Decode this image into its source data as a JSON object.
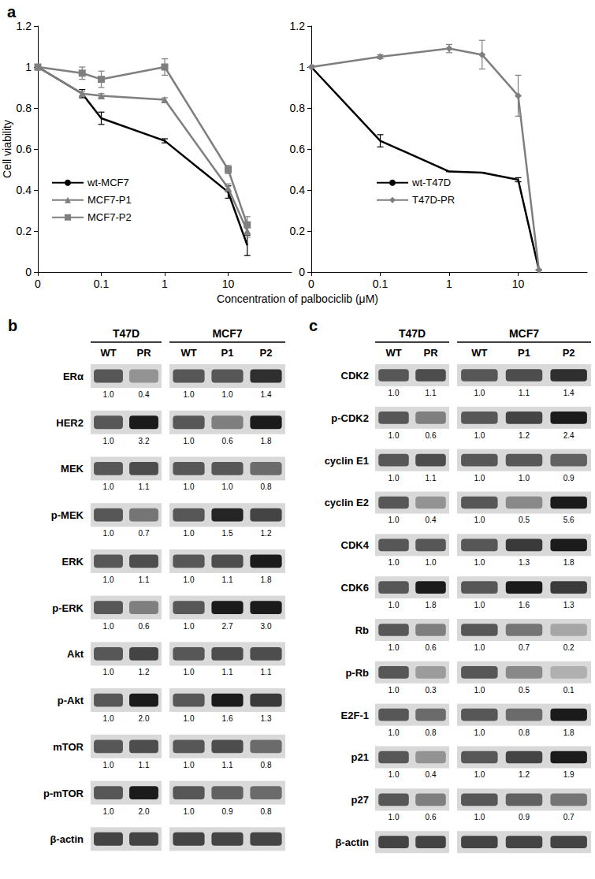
{
  "chart_data": [
    {
      "type": "line",
      "panel_label": "a",
      "ylabel": "Cell viability",
      "xlabel": "Concentration of palbociclib (μM)",
      "log": "x",
      "xlim": [
        0.01,
        100
      ],
      "xticks": [
        {
          "value": 0.01,
          "label": "0"
        },
        0.1,
        1,
        10
      ],
      "ylim": [
        0,
        1.2
      ],
      "yticks": [
        0,
        0.2,
        0.4,
        0.6,
        0.8,
        1,
        1.2
      ],
      "grid": false,
      "legend": "lower left",
      "x": [
        0.01,
        0.05,
        0.1,
        1,
        10,
        20
      ],
      "series": [
        {
          "name": "wt-MCF7",
          "color": "#000000",
          "marker": "none",
          "values": [
            1,
            0.87,
            0.75,
            0.64,
            0.39,
            0.13
          ],
          "errors": [
            0,
            0.02,
            0.03,
            0.01,
            0.03,
            0.05
          ]
        },
        {
          "name": "MCF7-P1",
          "color": "#7f7f7f",
          "marker": "triangle",
          "values": [
            1,
            0.87,
            0.86,
            0.84,
            0.41,
            0.2
          ],
          "errors": [
            0,
            0.01,
            0.01,
            0.01,
            0.02,
            0.03
          ]
        },
        {
          "name": "MCF7-P2",
          "color": "#7f7f7f",
          "marker": "square",
          "values": [
            1,
            0.97,
            0.94,
            1.0,
            0.5,
            0.23
          ],
          "errors": [
            0,
            0.03,
            0.04,
            0.04,
            0.02,
            0.04
          ]
        }
      ]
    },
    {
      "type": "line",
      "log": "x",
      "xlim": [
        0.01,
        100
      ],
      "xticks": [
        {
          "value": 0.01,
          "label": "0"
        },
        0.1,
        1,
        10
      ],
      "ylim": [
        0,
        1.2
      ],
      "yticks": [
        0,
        0.2,
        0.4,
        0.6,
        0.8,
        1,
        1.2
      ],
      "grid": false,
      "legend": "lower center",
      "x": [
        0.01,
        0.1,
        1,
        3,
        10,
        20
      ],
      "series": [
        {
          "name": "wt-T47D",
          "color": "#000000",
          "marker": "none",
          "values": [
            1,
            0.64,
            0.49,
            0.485,
            0.45,
            0.01
          ],
          "errors": [
            0,
            0.03,
            0,
            0,
            0.01,
            0
          ]
        },
        {
          "name": "T47D-PR",
          "color": "#7f7f7f",
          "marker": "diamond",
          "values": [
            1,
            1.05,
            1.09,
            1.06,
            0.86,
            0.01
          ],
          "errors": [
            0.01,
            0.01,
            0.02,
            0.07,
            0.1,
            0
          ]
        }
      ]
    }
  ],
  "blots": [
    {
      "panel_label": "b",
      "groups": [
        {
          "name": "T47D",
          "lanes": [
            "WT",
            "PR"
          ]
        },
        {
          "name": "MCF7",
          "lanes": [
            "WT",
            "P1",
            "P2"
          ]
        }
      ],
      "rows": [
        {
          "name": "ERα",
          "values": [
            "1.0",
            "0.4",
            "1.0",
            "1.0",
            "1.4"
          ]
        },
        {
          "name": "HER2",
          "values": [
            "1.0",
            "3.2",
            "1.0",
            "0.6",
            "1.8"
          ]
        },
        {
          "name": "MEK",
          "values": [
            "1.0",
            "1.1",
            "1.0",
            "1.0",
            "0.8"
          ]
        },
        {
          "name": "p-MEK",
          "values": [
            "1.0",
            "0.7",
            "1.0",
            "1.5",
            "1.2"
          ]
        },
        {
          "name": "ERK",
          "values": [
            "1.0",
            "1.1",
            "1.0",
            "1.1",
            "1.8"
          ]
        },
        {
          "name": "p-ERK",
          "values": [
            "1.0",
            "0.6",
            "1.0",
            "2.7",
            "3.0"
          ]
        },
        {
          "name": "Akt",
          "values": [
            "1.0",
            "1.2",
            "1.0",
            "1.1",
            "1.1"
          ]
        },
        {
          "name": "p-Akt",
          "values": [
            "1.0",
            "2.0",
            "1.0",
            "1.6",
            "1.3"
          ]
        },
        {
          "name": "mTOR",
          "values": [
            "1.0",
            "1.1",
            "1.0",
            "1.1",
            "0.8"
          ]
        },
        {
          "name": "p-mTOR",
          "values": [
            "1.0",
            "2.0",
            "1.0",
            "0.9",
            "0.8"
          ]
        },
        {
          "name": "β-actin"
        }
      ]
    },
    {
      "panel_label": "c",
      "groups": [
        {
          "name": "T47D",
          "lanes": [
            "WT",
            "PR"
          ]
        },
        {
          "name": "MCF7",
          "lanes": [
            "WT",
            "P1",
            "P2"
          ]
        }
      ],
      "rows": [
        {
          "name": "CDK2",
          "values": [
            "1.0",
            "1.1",
            "1.0",
            "1.1",
            "1.4"
          ]
        },
        {
          "name": "p-CDK2",
          "values": [
            "1.0",
            "0.6",
            "1.0",
            "1.2",
            "2.4"
          ]
        },
        {
          "name": "cyclin E1",
          "values": [
            "1.0",
            "1.1",
            "1.0",
            "1.0",
            "0.9"
          ]
        },
        {
          "name": "cyclin E2",
          "values": [
            "1.0",
            "0.4",
            "1.0",
            "0.5",
            "5.6"
          ]
        },
        {
          "name": "CDK4",
          "values": [
            "1.0",
            "1.0",
            "1.0",
            "1.3",
            "1.8"
          ]
        },
        {
          "name": "CDK6",
          "values": [
            "1.0",
            "1.8",
            "1.0",
            "1.6",
            "1.3"
          ]
        },
        {
          "name": "Rb",
          "values": [
            "1.0",
            "0.6",
            "1.0",
            "0.7",
            "0.2"
          ]
        },
        {
          "name": "p-Rb",
          "values": [
            "1.0",
            "0.3",
            "1.0",
            "0.5",
            "0.1"
          ]
        },
        {
          "name": "E2F-1",
          "values": [
            "1.0",
            "0.8",
            "1.0",
            "0.8",
            "1.8"
          ]
        },
        {
          "name": "p21",
          "values": [
            "1.0",
            "0.4",
            "1.0",
            "1.2",
            "1.9"
          ]
        },
        {
          "name": "p27",
          "values": [
            "1.0",
            "0.6",
            "1.0",
            "0.9",
            "0.7"
          ]
        },
        {
          "name": "β-actin"
        }
      ]
    }
  ]
}
